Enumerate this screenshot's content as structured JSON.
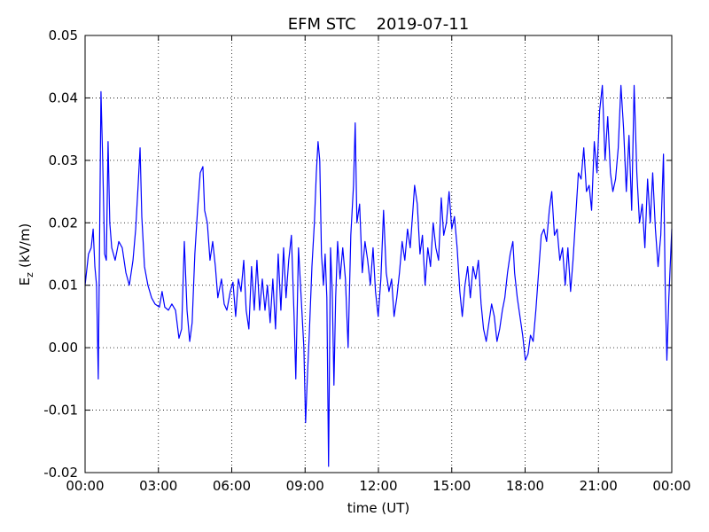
{
  "chart_data": {
    "type": "line",
    "title": "EFM STC    2019-07-11",
    "xlabel": "time (UT)",
    "ylabel": [
      "E",
      "z",
      "(kV/m)"
    ],
    "xlim": [
      0,
      24
    ],
    "ylim": [
      -0.02,
      0.05
    ],
    "xticks": [
      {
        "value": 0,
        "label": "00:00"
      },
      {
        "value": 3,
        "label": "03:00"
      },
      {
        "value": 6,
        "label": "06:00"
      },
      {
        "value": 9,
        "label": "09:00"
      },
      {
        "value": 12,
        "label": "12:00"
      },
      {
        "value": 15,
        "label": "15:00"
      },
      {
        "value": 18,
        "label": "18:00"
      },
      {
        "value": 21,
        "label": "21:00"
      },
      {
        "value": 24,
        "label": "00:00"
      }
    ],
    "yticks": [
      -0.02,
      -0.01,
      {
        "value": 0,
        "label": "0.00"
      },
      0.01,
      0.02,
      0.03,
      0.04,
      0.05
    ],
    "grid": true,
    "x": [
      0,
      0.14,
      0.25,
      0.33,
      0.4,
      0.47,
      0.54,
      0.65,
      0.72,
      0.8,
      0.87,
      0.94,
      1.01,
      1.09,
      1.23,
      1.38,
      1.52,
      1.67,
      1.81,
      1.96,
      2.07,
      2.17,
      2.25,
      2.32,
      2.43,
      2.57,
      2.72,
      2.86,
      3.04,
      3.15,
      3.26,
      3.41,
      3.55,
      3.7,
      3.84,
      3.95,
      4.06,
      4.17,
      4.28,
      4.38,
      4.49,
      4.6,
      4.71,
      4.82,
      4.89,
      5.0,
      5.11,
      5.22,
      5.33,
      5.43,
      5.58,
      5.69,
      5.8,
      5.94,
      6.05,
      6.16,
      6.27,
      6.38,
      6.49,
      6.59,
      6.7,
      6.81,
      6.92,
      7.03,
      7.14,
      7.25,
      7.36,
      7.46,
      7.57,
      7.68,
      7.79,
      7.9,
      8.01,
      8.12,
      8.22,
      8.33,
      8.44,
      8.55,
      8.62,
      8.73,
      8.84,
      8.95,
      9.02,
      9.09,
      9.17,
      9.28,
      9.38,
      9.46,
      9.53,
      9.6,
      9.67,
      9.75,
      9.82,
      9.89,
      9.96,
      10.04,
      10.11,
      10.18,
      10.25,
      10.33,
      10.43,
      10.54,
      10.65,
      10.76,
      10.87,
      10.98,
      11.05,
      11.12,
      11.23,
      11.34,
      11.45,
      11.56,
      11.67,
      11.78,
      11.88,
      11.99,
      12.1,
      12.21,
      12.32,
      12.43,
      12.54,
      12.64,
      12.75,
      12.86,
      12.97,
      13.08,
      13.19,
      13.3,
      13.41,
      13.48,
      13.59,
      13.7,
      13.8,
      13.91,
      14.02,
      14.13,
      14.24,
      14.35,
      14.46,
      14.57,
      14.67,
      14.78,
      14.89,
      15.0,
      15.11,
      15.22,
      15.33,
      15.43,
      15.54,
      15.65,
      15.76,
      15.87,
      15.98,
      16.09,
      16.2,
      16.3,
      16.41,
      16.52,
      16.63,
      16.74,
      16.85,
      16.96,
      17.07,
      17.17,
      17.28,
      17.39,
      17.5,
      17.57,
      17.68,
      17.79,
      17.9,
      18.01,
      18.12,
      18.22,
      18.33,
      18.44,
      18.55,
      18.66,
      18.77,
      18.88,
      18.99,
      19.09,
      19.2,
      19.31,
      19.42,
      19.53,
      19.64,
      19.75,
      19.86,
      19.96,
      20.07,
      20.18,
      20.29,
      20.4,
      20.51,
      20.62,
      20.72,
      20.83,
      20.94,
      21.05,
      21.16,
      21.27,
      21.38,
      21.49,
      21.59,
      21.7,
      21.81,
      21.92,
      22.03,
      22.14,
      22.25,
      22.36,
      22.46,
      22.57,
      22.68,
      22.79,
      22.9,
      23.01,
      23.12,
      23.22,
      23.33,
      23.44,
      23.55,
      23.66,
      23.73,
      23.8,
      23.88,
      24
    ],
    "series": [
      {
        "color": "#0000ff",
        "values": [
          0.01,
          0.015,
          0.016,
          0.019,
          0.013,
          0.01,
          -0.005,
          0.041,
          0.03,
          0.015,
          0.014,
          0.033,
          0.02,
          0.016,
          0.014,
          0.017,
          0.016,
          0.012,
          0.01,
          0.014,
          0.019,
          0.026,
          0.032,
          0.021,
          0.013,
          0.01,
          0.008,
          0.007,
          0.0065,
          0.009,
          0.0065,
          0.006,
          0.007,
          0.006,
          0.0015,
          0.003,
          0.017,
          0.006,
          0.001,
          0.004,
          0.015,
          0.022,
          0.028,
          0.029,
          0.022,
          0.02,
          0.014,
          0.017,
          0.013,
          0.008,
          0.011,
          0.007,
          0.006,
          0.009,
          0.0105,
          0.005,
          0.011,
          0.009,
          0.014,
          0.006,
          0.003,
          0.013,
          0.006,
          0.014,
          0.006,
          0.011,
          0.006,
          0.01,
          0.004,
          0.011,
          0.003,
          0.015,
          0.006,
          0.016,
          0.008,
          0.014,
          0.018,
          0.005,
          -0.005,
          0.016,
          0.008,
          0.0,
          -0.012,
          -0.005,
          0.002,
          0.013,
          0.02,
          0.028,
          0.033,
          0.03,
          0.015,
          0.01,
          0.015,
          0.008,
          -0.019,
          0.016,
          0.009,
          -0.006,
          0.008,
          0.017,
          0.011,
          0.016,
          0.011,
          0.0,
          0.018,
          0.026,
          0.036,
          0.02,
          0.023,
          0.012,
          0.017,
          0.014,
          0.01,
          0.016,
          0.009,
          0.005,
          0.011,
          0.022,
          0.012,
          0.009,
          0.011,
          0.005,
          0.008,
          0.012,
          0.017,
          0.014,
          0.019,
          0.016,
          0.022,
          0.026,
          0.023,
          0.015,
          0.018,
          0.01,
          0.016,
          0.013,
          0.02,
          0.016,
          0.014,
          0.024,
          0.018,
          0.02,
          0.025,
          0.019,
          0.021,
          0.016,
          0.009,
          0.005,
          0.01,
          0.013,
          0.008,
          0.013,
          0.011,
          0.014,
          0.007,
          0.003,
          0.001,
          0.004,
          0.007,
          0.005,
          0.001,
          0.003,
          0.006,
          0.008,
          0.012,
          0.015,
          0.017,
          0.012,
          0.008,
          0.005,
          0.002,
          -0.002,
          -0.001,
          0.002,
          0.001,
          0.006,
          0.012,
          0.018,
          0.019,
          0.017,
          0.022,
          0.025,
          0.018,
          0.019,
          0.014,
          0.016,
          0.01,
          0.016,
          0.009,
          0.014,
          0.021,
          0.028,
          0.027,
          0.032,
          0.025,
          0.026,
          0.022,
          0.033,
          0.028,
          0.038,
          0.042,
          0.03,
          0.037,
          0.028,
          0.025,
          0.027,
          0.032,
          0.042,
          0.035,
          0.025,
          0.034,
          0.022,
          0.042,
          0.028,
          0.02,
          0.023,
          0.016,
          0.027,
          0.02,
          0.028,
          0.019,
          0.013,
          0.018,
          0.031,
          0.01,
          -0.002,
          0.008,
          0.019
        ]
      }
    ]
  }
}
